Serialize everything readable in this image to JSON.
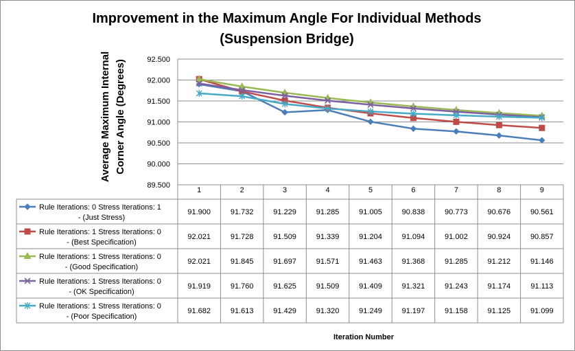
{
  "chart_data": {
    "type": "line",
    "title": "Improvement in the Maximum Angle For Individual Methods",
    "subtitle": "(Suspension Bridge)",
    "ylabel_line1": "Average Maximum Internal",
    "ylabel_line2": "Corner Angle (Degrees)",
    "xlabel": "Iteration Number",
    "x": [
      1,
      2,
      3,
      4,
      5,
      6,
      7,
      8,
      9
    ],
    "ylim": [
      89.5,
      92.5
    ],
    "yticks": [
      "92.500",
      "92.000",
      "91.500",
      "91.000",
      "90.500",
      "90.000",
      "89.500"
    ],
    "grid": true,
    "legend": "data-table",
    "series": [
      {
        "name_line1": "Rule Iterations: 0 Stress Iterations: 1",
        "name_line2": "- (Just Stress)",
        "color": "#4a7ebb",
        "marker": "diamond",
        "values": [
          91.9,
          91.732,
          91.229,
          91.285,
          91.005,
          90.838,
          90.773,
          90.676,
          90.561
        ],
        "labels": [
          "91.900",
          "91.732",
          "91.229",
          "91.285",
          "91.005",
          "90.838",
          "90.773",
          "90.676",
          "90.561"
        ]
      },
      {
        "name_line1": "Rule Iterations: 1  Stress Iterations: 0",
        "name_line2": "- (Best Specification)",
        "color": "#be4b48",
        "marker": "square",
        "values": [
          92.021,
          91.728,
          91.509,
          91.339,
          91.204,
          91.094,
          91.002,
          90.924,
          90.857
        ],
        "labels": [
          "92.021",
          "91.728",
          "91.509",
          "91.339",
          "91.204",
          "91.094",
          "91.002",
          "90.924",
          "90.857"
        ]
      },
      {
        "name_line1": "Rule Iterations: 1 Stress Iterations: 0",
        "name_line2": "- (Good Specification)",
        "color": "#98b954",
        "marker": "triangle",
        "values": [
          92.021,
          91.845,
          91.697,
          91.571,
          91.463,
          91.368,
          91.285,
          91.212,
          91.146
        ],
        "labels": [
          "92.021",
          "91.845",
          "91.697",
          "91.571",
          "91.463",
          "91.368",
          "91.285",
          "91.212",
          "91.146"
        ]
      },
      {
        "name_line1": "Rule Iterations: 1  Stress Iterations: 0",
        "name_line2": "- (OK Specification)",
        "color": "#7d60a0",
        "marker": "x",
        "values": [
          91.919,
          91.76,
          91.625,
          91.509,
          91.409,
          91.321,
          91.243,
          91.174,
          91.113
        ],
        "labels": [
          "91.919",
          "91.760",
          "91.625",
          "91.509",
          "91.409",
          "91.321",
          "91.243",
          "91.174",
          "91.113"
        ]
      },
      {
        "name_line1": "Rule Iterations: 1  Stress Iterations: 0",
        "name_line2": "- (Poor Specification)",
        "color": "#46aac5",
        "marker": "star",
        "values": [
          91.682,
          91.613,
          91.429,
          91.32,
          91.249,
          91.197,
          91.158,
          91.125,
          91.099
        ],
        "labels": [
          "91.682",
          "91.613",
          "91.429",
          "91.320",
          "91.249",
          "91.197",
          "91.158",
          "91.125",
          "91.099"
        ]
      }
    ]
  }
}
